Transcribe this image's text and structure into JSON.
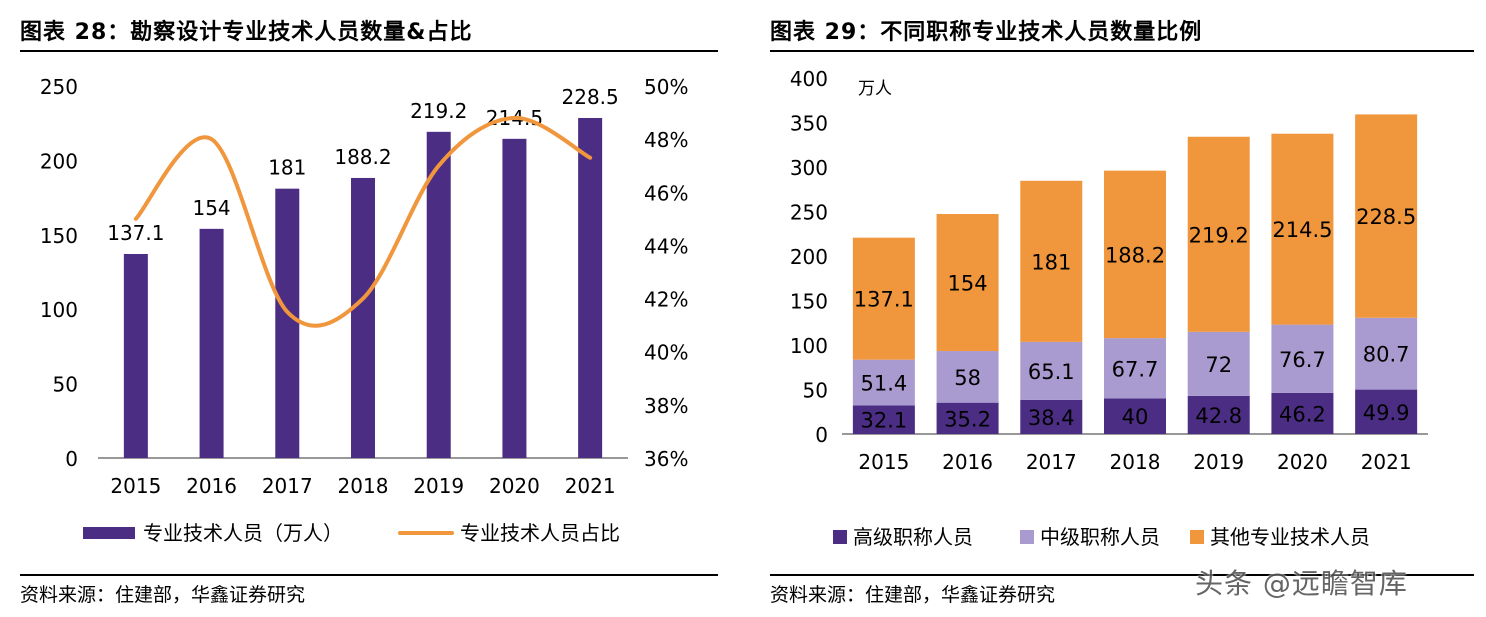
{
  "left": {
    "title": "图表 28：勘察设计专业技术人员数量&占比",
    "source": "资料来源：住建部，华鑫证券研究",
    "chart_data": {
      "type": "bar+line",
      "categories": [
        "2015",
        "2016",
        "2017",
        "2018",
        "2019",
        "2020",
        "2021"
      ],
      "series": [
        {
          "name": "专业技术人员（万人）",
          "type": "bar",
          "axis": "left",
          "values": [
            137.1,
            154,
            181,
            188.2,
            219.2,
            214.5,
            228.5
          ],
          "labels": [
            "137.1",
            "154",
            "181",
            "188.2",
            "219.2",
            "214.5",
            "228.5"
          ],
          "color": "#4b2d84"
        },
        {
          "name": "专业技术人员占比",
          "type": "line",
          "axis": "right",
          "smooth": true,
          "values": [
            45.0,
            48.0,
            41.5,
            42.0,
            47.0,
            48.8,
            47.3
          ],
          "color": "#f0963c"
        }
      ],
      "ylim_left": [
        0,
        250
      ],
      "yticks_left": [
        "0",
        "50",
        "100",
        "150",
        "200",
        "250"
      ],
      "ylim_right": [
        36,
        50
      ],
      "yticks_right": [
        "36%",
        "38%",
        "40%",
        "42%",
        "44%",
        "46%",
        "48%",
        "50%"
      ],
      "legend_placement": "bottom",
      "grid": false
    }
  },
  "right": {
    "title": "图表 29：不同职称专业技术人员数量比例",
    "source": "资料来源：住建部，华鑫证券研究",
    "chart_data": {
      "type": "stacked-bar",
      "categories": [
        "2015",
        "2016",
        "2017",
        "2018",
        "2019",
        "2020",
        "2021"
      ],
      "series": [
        {
          "name": "高级职称人员",
          "values": [
            32.1,
            35.2,
            38.4,
            40,
            42.8,
            46.2,
            49.9
          ],
          "labels": [
            "32.1",
            "35.2",
            "38.4",
            "40",
            "42.8",
            "46.2",
            "49.9"
          ],
          "color": "#4b2d84"
        },
        {
          "name": "中级职称人员",
          "values": [
            51.4,
            58,
            65.1,
            67.7,
            72,
            76.7,
            80.7
          ],
          "labels": [
            "51.4",
            "58",
            "65.1",
            "67.7",
            "72",
            "76.7",
            "80.7"
          ],
          "color": "#a99bd0"
        },
        {
          "name": "其他专业技术人员",
          "values": [
            137.1,
            154,
            181,
            188.2,
            219.2,
            214.5,
            228.5
          ],
          "labels": [
            "137.1",
            "154",
            "181",
            "188.2",
            "219.2",
            "214.5",
            "228.5"
          ],
          "color": "#f0963c"
        }
      ],
      "ylabel": "万人",
      "ylim": [
        0,
        400
      ],
      "yticks": [
        "0",
        "50",
        "100",
        "150",
        "200",
        "250",
        "300",
        "350",
        "400"
      ],
      "legend_placement": "bottom",
      "grid": false
    }
  },
  "watermark": "头条 @远瞻智库"
}
